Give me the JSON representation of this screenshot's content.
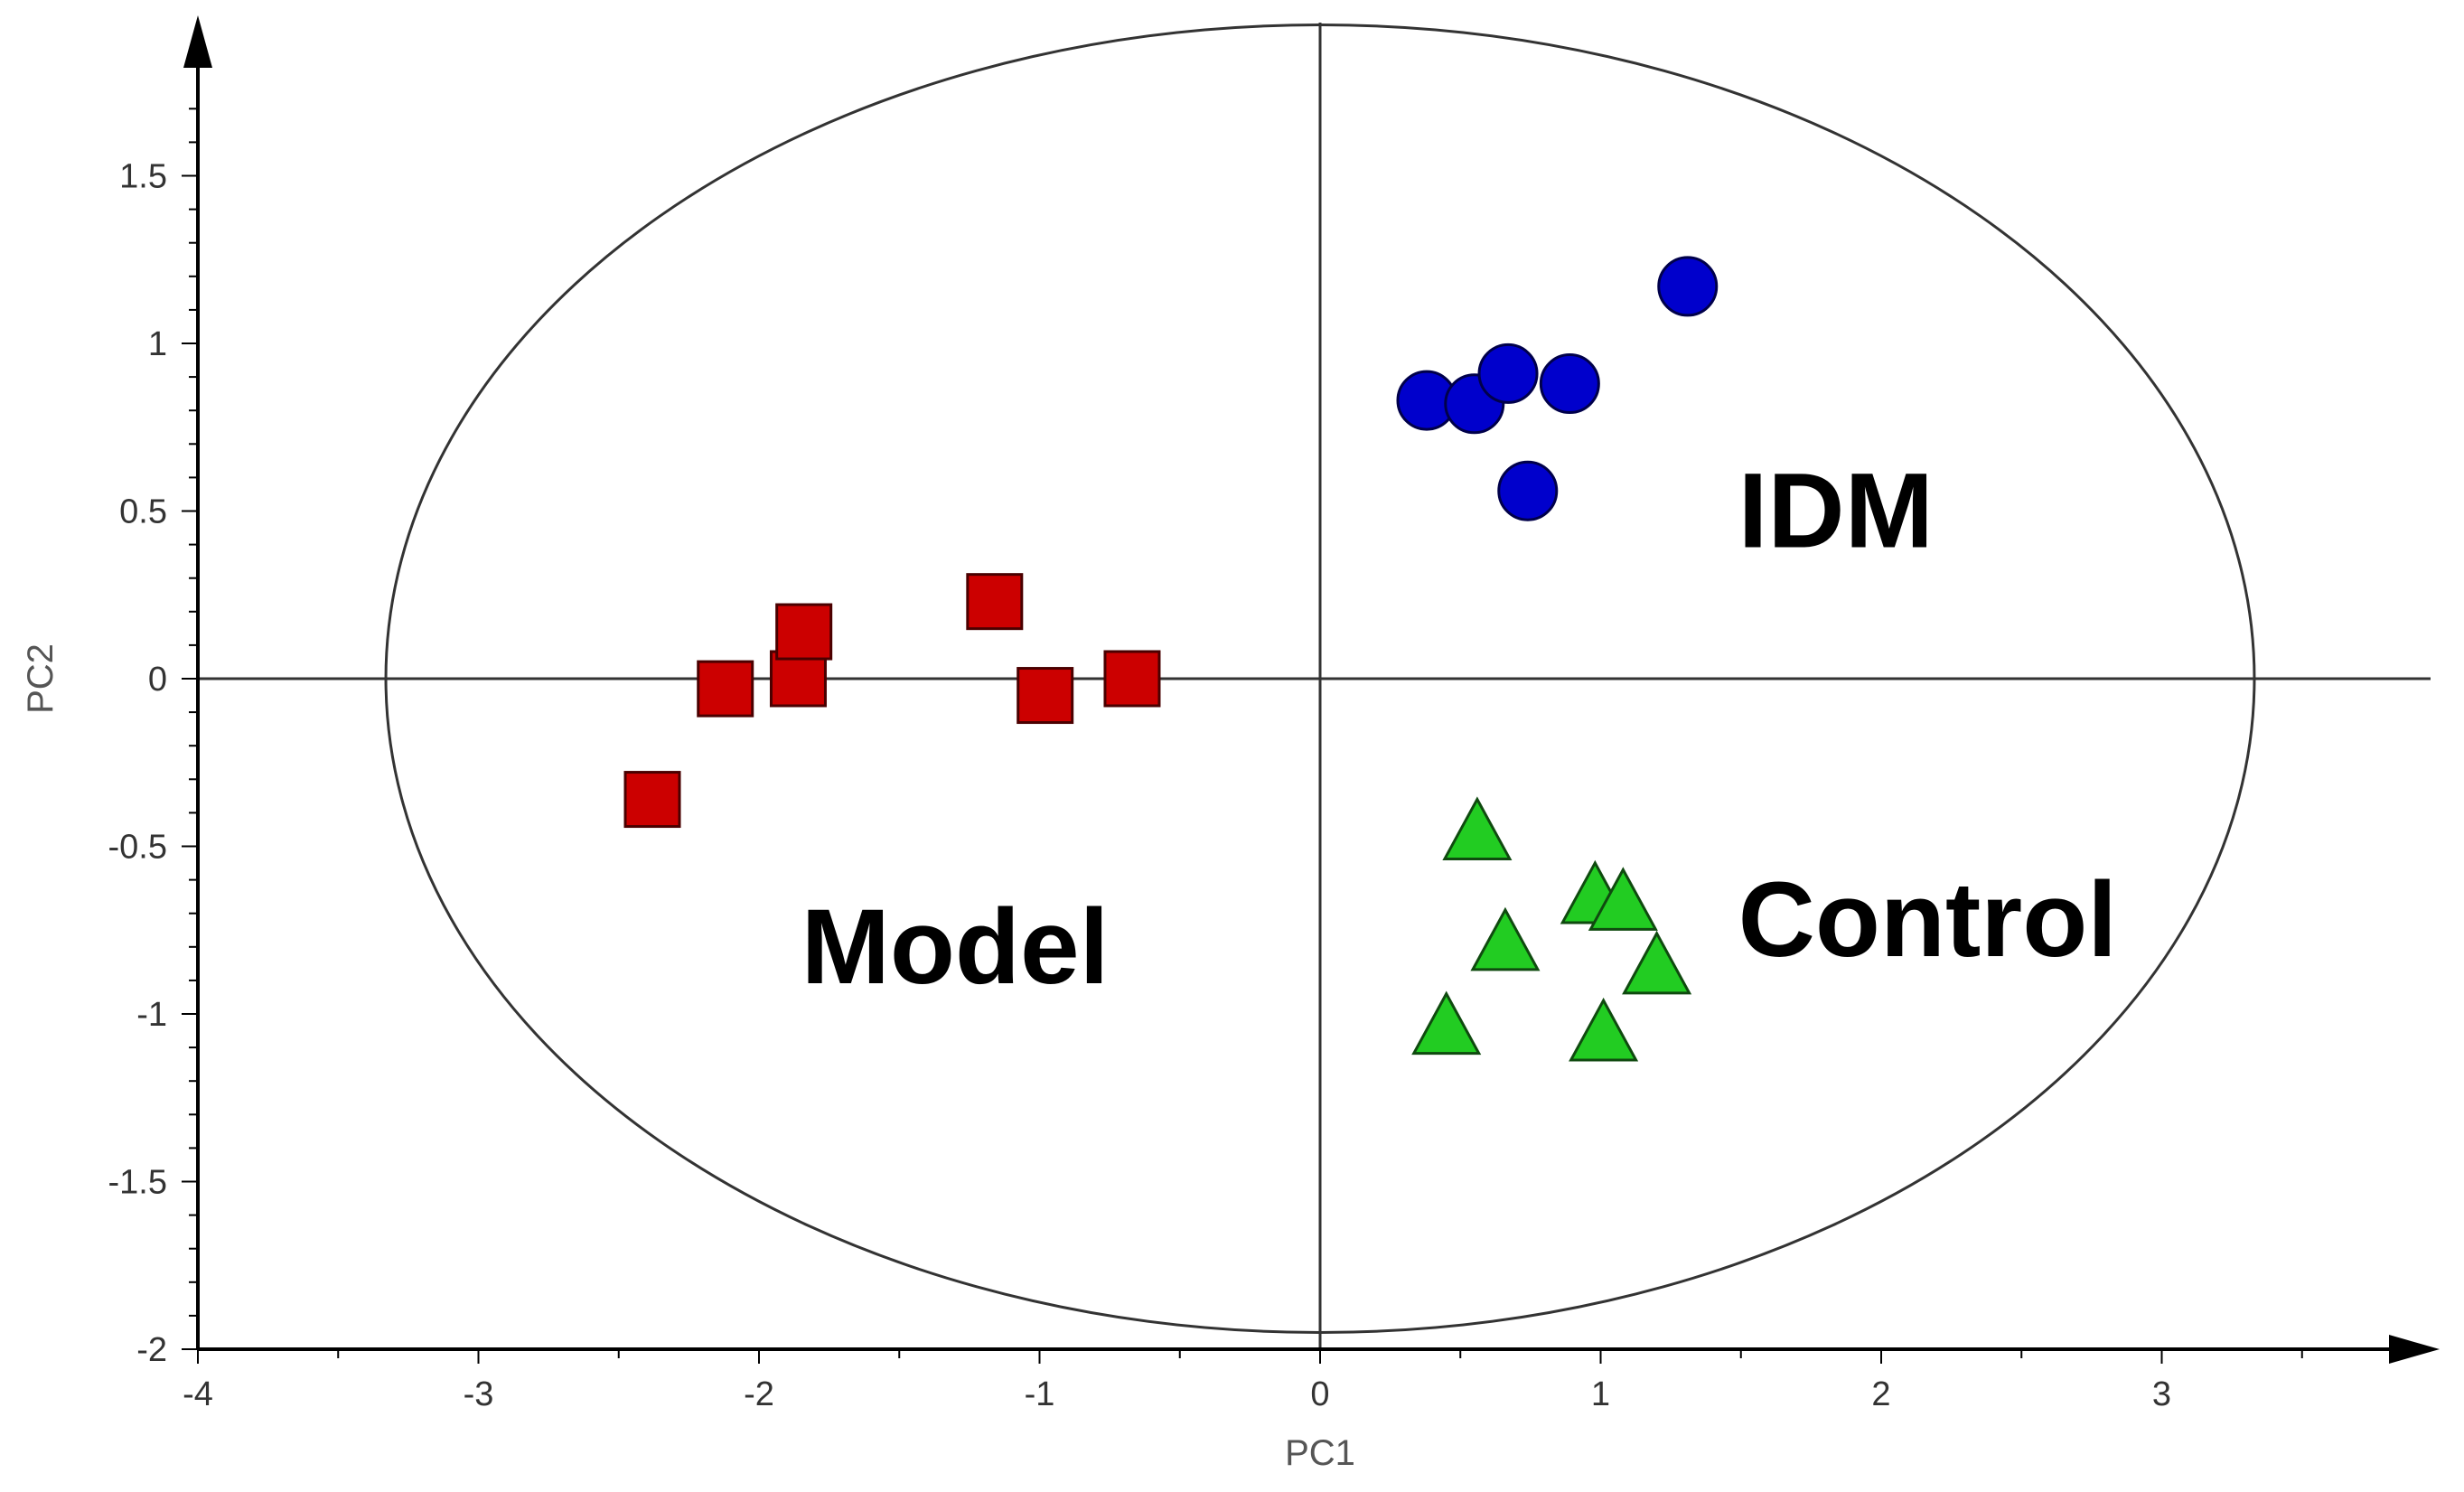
{
  "chart_data": {
    "type": "scatter",
    "title": "",
    "xlabel": "PC1",
    "ylabel": "PC2",
    "xlim": [
      -4,
      4
    ],
    "ylim": [
      -2,
      1.9
    ],
    "x_ticks": [
      -4,
      -3,
      -2,
      -1,
      0,
      1,
      2,
      3
    ],
    "x_tick_labels": [
      "-4",
      "-3",
      "-2",
      "-1",
      "0",
      "1",
      "2",
      "3"
    ],
    "y_ticks": [
      -2,
      -1.5,
      -1,
      -0.5,
      0,
      0.5,
      1,
      1.5
    ],
    "y_tick_labels": [
      "-2",
      "-1.5",
      "-1",
      "-0.5",
      "0",
      "0.5",
      "1",
      "1.5"
    ],
    "grid": false,
    "ellipse": {
      "cx": 0,
      "cy": 0,
      "rx": 3.33,
      "ry": 1.95
    },
    "series": [
      {
        "name": "Model",
        "marker": "square",
        "color": "#cc0000",
        "points": [
          [
            -2.38,
            -0.36
          ],
          [
            -2.12,
            -0.03
          ],
          [
            -1.86,
            0.0
          ],
          [
            -1.84,
            0.14
          ],
          [
            -1.16,
            0.23
          ],
          [
            -0.98,
            -0.05
          ],
          [
            -0.67,
            0.0
          ]
        ]
      },
      {
        "name": "IDM",
        "marker": "circle",
        "color": "#0000cc",
        "points": [
          [
            0.38,
            0.83
          ],
          [
            0.55,
            0.82
          ],
          [
            0.67,
            0.91
          ],
          [
            0.89,
            0.88
          ],
          [
            0.74,
            0.56
          ],
          [
            1.31,
            1.17
          ]
        ]
      },
      {
        "name": "Control",
        "marker": "triangle",
        "color": "#22cc22",
        "points": [
          [
            0.56,
            -0.47
          ],
          [
            0.98,
            -0.66
          ],
          [
            1.08,
            -0.68
          ],
          [
            0.66,
            -0.8
          ],
          [
            1.2,
            -0.87
          ],
          [
            0.45,
            -1.05
          ],
          [
            1.01,
            -1.07
          ]
        ]
      }
    ],
    "group_labels": [
      {
        "text": "IDM",
        "x": 1.49,
        "y": 0.5
      },
      {
        "text": "Control",
        "x": 1.49,
        "y": -0.72
      },
      {
        "text": "Model",
        "x": -1.85,
        "y": -0.8
      }
    ]
  }
}
